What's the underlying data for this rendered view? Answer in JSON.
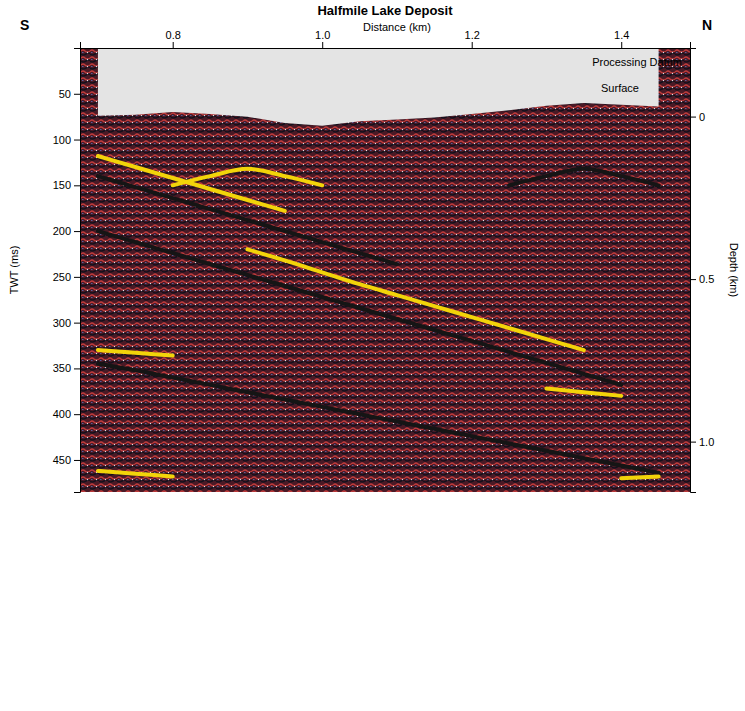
{
  "chart_data": {
    "type": "line",
    "title": "Halfmile Lake Deposit",
    "x_label": "Distance (km)",
    "y_label": "TWT (ms)",
    "y2_label": "Depth (km)",
    "annotations": [
      "S",
      "N",
      "Processing Datum",
      "Surface"
    ],
    "xlim": [
      0.676,
      1.492
    ],
    "xticks": [
      0.8,
      {
        "value": 1,
        "label": "1.0"
      },
      1.2,
      1.4
    ],
    "ylim": [
      0,
      485
    ],
    "yticks": [
      50,
      100,
      150,
      200,
      250,
      300,
      350,
      400,
      450
    ],
    "y2lim": [
      -0.211,
      1.155
    ],
    "y2ticks": [
      0,
      0.5,
      {
        "value": 1,
        "label": "1.0"
      }
    ],
    "x": [
      0.7,
      0.75,
      0.8,
      0.85,
      0.9,
      0.95,
      1.0,
      1.05,
      1.1,
      1.15,
      1.2,
      1.25,
      1.3,
      1.35,
      1.4,
      1.45
    ],
    "series": [
      {
        "type": "area",
        "color": "#e4e4e4",
        "values": [
          74,
          73,
          70,
          72,
          75,
          82,
          85,
          80,
          78,
          76,
          72,
          68,
          63,
          60,
          62,
          64
        ]
      },
      {
        "color": "#f2d40a",
        "values": [
          null,
          null,
          null,
          null,
          220,
          232,
          245,
          258,
          270,
          282,
          294,
          306,
          318,
          330,
          null,
          null
        ]
      },
      {
        "color": "#151515",
        "values": [
          200,
          212,
          224,
          236,
          248,
          260,
          272,
          284,
          296,
          308,
          320,
          332,
          344,
          356,
          368,
          null
        ]
      },
      {
        "color": "#f2d40a",
        "values": [
          118,
          130,
          142,
          154,
          166,
          178,
          null,
          null,
          null,
          null,
          null,
          null,
          null,
          null,
          null,
          null
        ]
      },
      {
        "color": "#151515",
        "values": [
          140,
          152,
          164,
          176,
          188,
          200,
          212,
          224,
          236,
          null,
          null,
          null,
          null,
          null,
          null,
          null
        ]
      },
      {
        "color": "#f2d40a",
        "values": [
          null,
          null,
          150,
          140,
          132,
          140,
          150,
          null,
          null,
          null,
          null,
          null,
          null,
          null,
          null,
          null
        ]
      },
      {
        "color": "#151515",
        "values": [
          345,
          352,
          360,
          368,
          376,
          384,
          392,
          400,
          408,
          416,
          424,
          432,
          440,
          448,
          456,
          464
        ]
      },
      {
        "color": "#f2d40a",
        "values": [
          330,
          333,
          336,
          null,
          null,
          null,
          null,
          null,
          null,
          null,
          null,
          null,
          372,
          376,
          380,
          null
        ]
      },
      {
        "color": "#151515",
        "values": [
          null,
          null,
          null,
          null,
          null,
          null,
          null,
          null,
          null,
          null,
          null,
          150,
          140,
          132,
          140,
          150
        ]
      },
      {
        "color": "#f2d40a",
        "values": [
          462,
          465,
          468,
          null,
          null,
          null,
          null,
          null,
          null,
          null,
          null,
          null,
          null,
          null,
          470,
          468
        ]
      }
    ]
  }
}
